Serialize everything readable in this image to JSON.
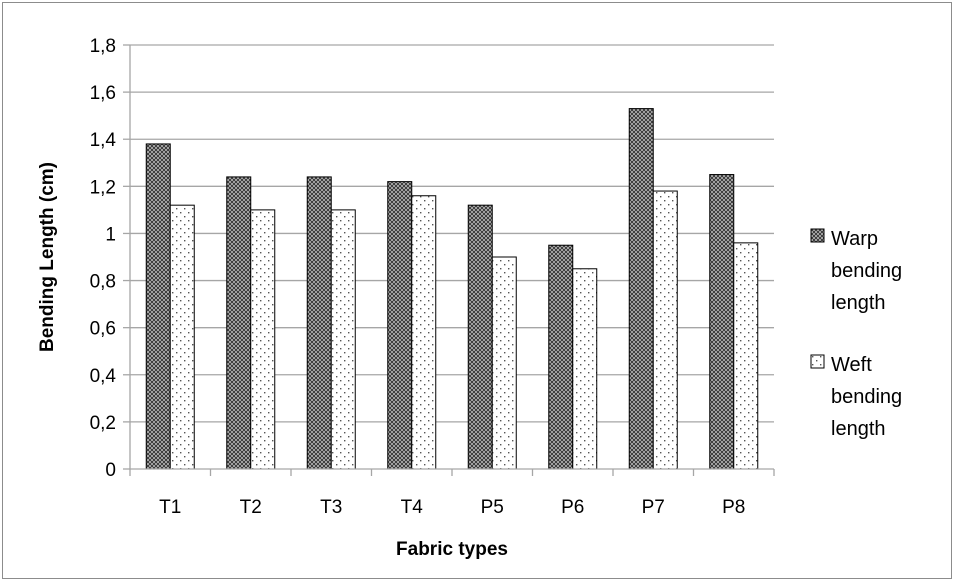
{
  "chart_data": {
    "type": "bar",
    "title": "",
    "xlabel": "Fabric types",
    "ylabel": "Bending Length (cm)",
    "categories": [
      "T1",
      "T2",
      "T3",
      "T4",
      "P5",
      "P6",
      "P7",
      "P8"
    ],
    "series": [
      {
        "name": "Warp bending length",
        "name_lines": [
          "Warp",
          "bending",
          "length"
        ],
        "values": [
          1.38,
          1.24,
          1.24,
          1.22,
          1.12,
          0.95,
          1.53,
          1.25
        ],
        "pattern": "crosshatch-dark"
      },
      {
        "name": "Weft bending length",
        "name_lines": [
          "Weft",
          "bending",
          "length"
        ],
        "values": [
          1.12,
          1.1,
          1.1,
          1.16,
          0.9,
          0.85,
          1.18,
          0.96
        ],
        "pattern": "dotted-white"
      }
    ],
    "ylim": [
      0,
      1.8
    ],
    "yticks": [
      0,
      0.2,
      0.4,
      0.6,
      0.8,
      1,
      1.2,
      1.4,
      1.6,
      1.8
    ],
    "ytick_labels": [
      "0",
      "0,2",
      "0,4",
      "0,6",
      "0,8",
      "1",
      "1,2",
      "1,4",
      "1,6",
      "1,8"
    ],
    "grid": true,
    "legend_position": "right",
    "colors": {
      "gridline": "#a6a6a6",
      "bar_outline": "#000000",
      "warp_dark": "#404040",
      "warp_light": "#a0a0a0",
      "weft_dot": "#555555"
    }
  }
}
